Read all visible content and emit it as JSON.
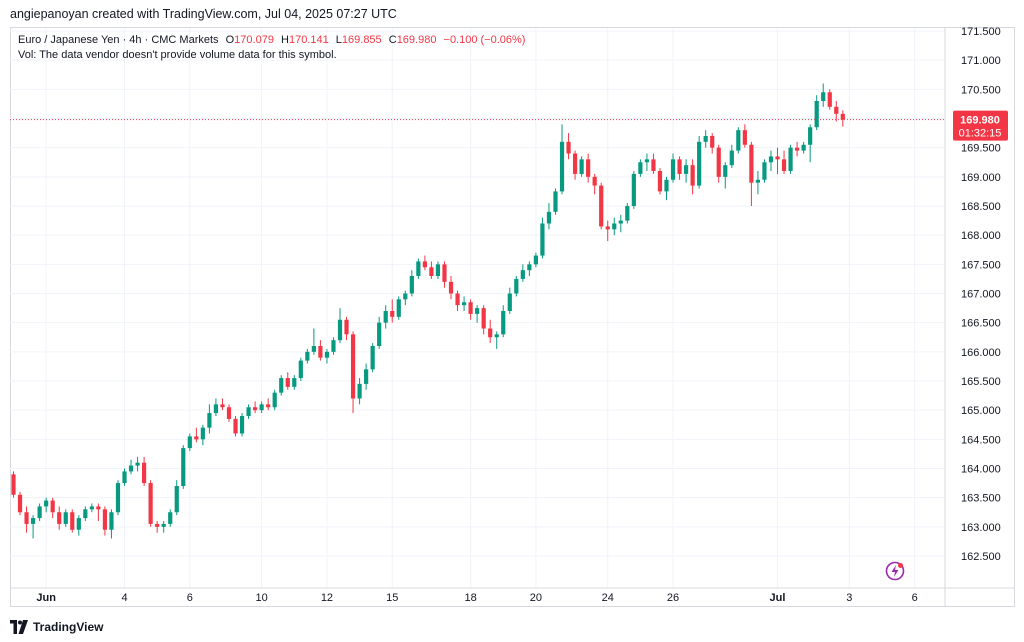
{
  "header": {
    "attribution": "angiepanoyan created with TradingView.com, Jul 04, 2025 07:27 UTC"
  },
  "legend": {
    "symbol": "Euro / Japanese Yen · 4h · CMC Markets",
    "o_label": "O",
    "o_value": "170.079",
    "h_label": "H",
    "h_value": "170.141",
    "l_label": "L",
    "l_value": "169.855",
    "c_label": "C",
    "c_value": "169.980",
    "change": "−0.100 (−0.06%)",
    "volume_note": "Vol: The data vendor doesn't provide volume data for this symbol."
  },
  "price_tag": {
    "price": "169.980",
    "countdown": "01:32:15"
  },
  "footer": {
    "brand": "TradingView"
  },
  "colors": {
    "up": "#089981",
    "down": "#f23645",
    "grid": "#f0f3fa",
    "axis_text": "#131722",
    "last_price_line": "#f23645"
  },
  "icons": {
    "flash": "lightning-bolt-icon",
    "logo": "tradingview-logo-icon"
  },
  "chart_data": {
    "type": "candlestick",
    "timeframe": "4h",
    "symbol": "EURJPY",
    "y_ticks": [
      "171.500",
      "171.000",
      "170.500",
      "170.000",
      "169.500",
      "169.000",
      "168.500",
      "168.000",
      "167.500",
      "167.000",
      "166.500",
      "166.000",
      "165.500",
      "165.000",
      "164.500",
      "164.000",
      "163.500",
      "163.000",
      "162.500"
    ],
    "ylim": [
      162.1,
      171.75
    ],
    "x_labels": [
      {
        "label": "Jun",
        "index": 5
      },
      {
        "label": "4",
        "index": 17
      },
      {
        "label": "6",
        "index": 27
      },
      {
        "label": "10",
        "index": 38
      },
      {
        "label": "12",
        "index": 48
      },
      {
        "label": "15",
        "index": 58
      },
      {
        "label": "18",
        "index": 70
      },
      {
        "label": "20",
        "index": 80
      },
      {
        "label": "24",
        "index": 91
      },
      {
        "label": "26",
        "index": 101
      },
      {
        "label": "Jul",
        "index": 117
      },
      {
        "label": "3",
        "index": 128
      },
      {
        "label": "6",
        "index": 138
      }
    ],
    "last_price": 169.98,
    "ohlc": [
      [
        163.9,
        163.95,
        163.5,
        163.55
      ],
      [
        163.55,
        163.6,
        163.2,
        163.25
      ],
      [
        163.25,
        163.35,
        162.9,
        163.05
      ],
      [
        163.05,
        163.2,
        162.8,
        163.15
      ],
      [
        163.15,
        163.4,
        163.1,
        163.35
      ],
      [
        163.35,
        163.5,
        163.25,
        163.45
      ],
      [
        163.45,
        163.5,
        163.15,
        163.25
      ],
      [
        163.25,
        163.35,
        162.95,
        163.05
      ],
      [
        163.05,
        163.3,
        163.0,
        163.25
      ],
      [
        163.25,
        163.3,
        162.9,
        162.95
      ],
      [
        162.95,
        163.2,
        162.85,
        163.15
      ],
      [
        163.15,
        163.35,
        163.1,
        163.3
      ],
      [
        163.3,
        163.4,
        163.25,
        163.35
      ],
      [
        163.35,
        163.4,
        163.1,
        163.3
      ],
      [
        163.3,
        163.35,
        162.85,
        162.95
      ],
      [
        162.95,
        163.3,
        162.8,
        163.25
      ],
      [
        163.25,
        163.8,
        163.2,
        163.75
      ],
      [
        163.75,
        164.0,
        163.7,
        163.95
      ],
      [
        163.95,
        164.15,
        163.9,
        164.05
      ],
      [
        164.05,
        164.2,
        163.95,
        164.1
      ],
      [
        164.1,
        164.2,
        163.7,
        163.75
      ],
      [
        163.75,
        163.8,
        163.0,
        163.05
      ],
      [
        163.05,
        163.1,
        162.9,
        163.0
      ],
      [
        163.0,
        163.1,
        162.9,
        163.05
      ],
      [
        163.05,
        163.3,
        163.0,
        163.25
      ],
      [
        163.25,
        163.8,
        163.2,
        163.7
      ],
      [
        163.7,
        164.4,
        163.65,
        164.35
      ],
      [
        164.35,
        164.6,
        164.3,
        164.55
      ],
      [
        164.55,
        164.7,
        164.45,
        164.5
      ],
      [
        164.5,
        164.75,
        164.4,
        164.7
      ],
      [
        164.7,
        165.1,
        164.6,
        164.95
      ],
      [
        164.95,
        165.2,
        164.9,
        165.1
      ],
      [
        165.1,
        165.2,
        165.0,
        165.05
      ],
      [
        165.05,
        165.1,
        164.8,
        164.85
      ],
      [
        164.85,
        164.9,
        164.55,
        164.6
      ],
      [
        164.6,
        164.95,
        164.55,
        164.9
      ],
      [
        164.9,
        165.1,
        164.85,
        165.05
      ],
      [
        165.05,
        165.15,
        164.95,
        165.0
      ],
      [
        165.0,
        165.15,
        164.95,
        165.1
      ],
      [
        165.1,
        165.2,
        165.0,
        165.05
      ],
      [
        165.05,
        165.35,
        165.0,
        165.3
      ],
      [
        165.3,
        165.6,
        165.25,
        165.55
      ],
      [
        165.55,
        165.65,
        165.35,
        165.4
      ],
      [
        165.4,
        165.6,
        165.35,
        165.55
      ],
      [
        165.55,
        165.9,
        165.5,
        165.85
      ],
      [
        165.85,
        166.05,
        165.8,
        166.0
      ],
      [
        166.0,
        166.4,
        165.95,
        166.1
      ],
      [
        166.1,
        166.2,
        165.85,
        165.9
      ],
      [
        165.9,
        166.05,
        165.8,
        166.0
      ],
      [
        166.0,
        166.25,
        165.95,
        166.2
      ],
      [
        166.2,
        166.75,
        166.15,
        166.55
      ],
      [
        166.55,
        166.6,
        166.2,
        166.3
      ],
      [
        166.3,
        166.35,
        164.95,
        165.2
      ],
      [
        165.2,
        165.55,
        165.1,
        165.45
      ],
      [
        165.45,
        165.8,
        165.35,
        165.7
      ],
      [
        165.7,
        166.15,
        165.65,
        166.1
      ],
      [
        166.1,
        166.6,
        166.05,
        166.5
      ],
      [
        166.5,
        166.8,
        166.4,
        166.7
      ],
      [
        166.7,
        166.9,
        166.5,
        166.6
      ],
      [
        166.6,
        166.95,
        166.55,
        166.9
      ],
      [
        166.9,
        167.05,
        166.8,
        167.0
      ],
      [
        167.0,
        167.4,
        166.95,
        167.3
      ],
      [
        167.3,
        167.6,
        167.25,
        167.55
      ],
      [
        167.55,
        167.65,
        167.4,
        167.45
      ],
      [
        167.45,
        167.55,
        167.25,
        167.3
      ],
      [
        167.3,
        167.55,
        167.25,
        167.5
      ],
      [
        167.5,
        167.55,
        167.1,
        167.2
      ],
      [
        167.2,
        167.3,
        166.9,
        167.0
      ],
      [
        167.0,
        167.05,
        166.7,
        166.8
      ],
      [
        166.8,
        166.95,
        166.7,
        166.85
      ],
      [
        166.85,
        166.9,
        166.55,
        166.65
      ],
      [
        166.65,
        166.8,
        166.5,
        166.75
      ],
      [
        166.75,
        166.8,
        166.3,
        166.4
      ],
      [
        166.4,
        166.55,
        166.15,
        166.25
      ],
      [
        166.25,
        166.35,
        166.05,
        166.3
      ],
      [
        166.3,
        166.8,
        166.25,
        166.7
      ],
      [
        166.7,
        167.1,
        166.65,
        167.0
      ],
      [
        167.0,
        167.3,
        166.95,
        167.25
      ],
      [
        167.25,
        167.5,
        167.2,
        167.4
      ],
      [
        167.4,
        167.55,
        167.3,
        167.5
      ],
      [
        167.5,
        167.7,
        167.45,
        167.65
      ],
      [
        167.65,
        168.3,
        167.6,
        168.2
      ],
      [
        168.2,
        168.55,
        168.1,
        168.4
      ],
      [
        168.4,
        168.8,
        168.35,
        168.75
      ],
      [
        168.75,
        169.9,
        168.7,
        169.6
      ],
      [
        169.6,
        169.75,
        169.3,
        169.4
      ],
      [
        169.4,
        169.45,
        168.95,
        169.05
      ],
      [
        169.05,
        169.35,
        169.0,
        169.3
      ],
      [
        169.3,
        169.4,
        168.9,
        169.0
      ],
      [
        169.0,
        169.05,
        168.7,
        168.85
      ],
      [
        168.85,
        168.9,
        168.1,
        168.15
      ],
      [
        168.15,
        168.25,
        167.9,
        168.1
      ],
      [
        168.1,
        168.3,
        168.0,
        168.2
      ],
      [
        168.2,
        168.35,
        168.05,
        168.25
      ],
      [
        168.25,
        168.55,
        168.2,
        168.5
      ],
      [
        168.5,
        169.1,
        168.45,
        169.05
      ],
      [
        169.05,
        169.3,
        169.0,
        169.25
      ],
      [
        169.25,
        169.4,
        169.1,
        169.3
      ],
      [
        169.3,
        169.4,
        169.05,
        169.1
      ],
      [
        169.1,
        169.15,
        168.7,
        168.75
      ],
      [
        168.75,
        169.0,
        168.6,
        168.95
      ],
      [
        168.95,
        169.4,
        168.9,
        169.3
      ],
      [
        169.3,
        169.35,
        168.95,
        169.05
      ],
      [
        169.05,
        169.3,
        168.9,
        169.2
      ],
      [
        169.2,
        169.3,
        168.7,
        168.85
      ],
      [
        168.85,
        169.7,
        168.8,
        169.6
      ],
      [
        169.6,
        169.8,
        169.5,
        169.7
      ],
      [
        169.7,
        169.75,
        169.4,
        169.5
      ],
      [
        169.5,
        169.55,
        168.9,
        169.0
      ],
      [
        169.0,
        169.25,
        168.8,
        169.2
      ],
      [
        169.2,
        169.55,
        169.15,
        169.45
      ],
      [
        169.45,
        169.85,
        169.4,
        169.8
      ],
      [
        169.8,
        169.9,
        169.5,
        169.55
      ],
      [
        169.55,
        169.6,
        168.5,
        168.9
      ],
      [
        168.9,
        169.1,
        168.7,
        168.95
      ],
      [
        168.95,
        169.3,
        168.9,
        169.25
      ],
      [
        169.25,
        169.45,
        169.1,
        169.35
      ],
      [
        169.35,
        169.5,
        169.05,
        169.3
      ],
      [
        169.3,
        169.45,
        169.05,
        169.1
      ],
      [
        169.1,
        169.55,
        169.05,
        169.5
      ],
      [
        169.5,
        169.6,
        169.35,
        169.45
      ],
      [
        169.45,
        169.6,
        169.4,
        169.55
      ],
      [
        169.55,
        169.9,
        169.25,
        169.85
      ],
      [
        169.85,
        170.4,
        169.8,
        170.3
      ],
      [
        170.3,
        170.6,
        170.2,
        170.45
      ],
      [
        170.45,
        170.5,
        170.15,
        170.2
      ],
      [
        170.2,
        170.3,
        169.95,
        170.08
      ],
      [
        170.08,
        170.14,
        169.86,
        169.98
      ]
    ]
  }
}
